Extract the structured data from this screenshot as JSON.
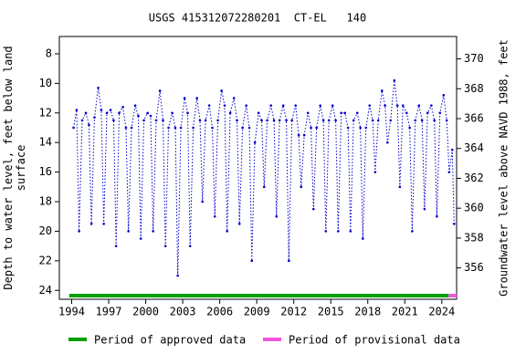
{
  "chart_data": {
    "type": "line",
    "title": "USGS 415312072280201  CT-EL   140",
    "ylabel": "Depth to water level, feet below land\nsurface",
    "y2label": "Groundwater level above NAVD 1988, feet",
    "xlim": [
      1993.0,
      2025.2
    ],
    "xticks": [
      1994,
      1997,
      2000,
      2003,
      2006,
      2009,
      2012,
      2015,
      2018,
      2021,
      2024
    ],
    "ylim": [
      6.83,
      24.6
    ],
    "yticks": [
      8,
      10,
      12,
      14,
      16,
      18,
      20,
      22,
      24
    ],
    "y_inverted": true,
    "y2lim": [
      371.5,
      353.9
    ],
    "y2ticks": [
      356,
      358,
      360,
      362,
      364,
      366,
      368,
      370
    ],
    "series": [
      {
        "name": "Depth to water level",
        "color": "#0000cc",
        "x": [
          1994.15,
          1994.4,
          1994.6,
          1994.85,
          1995.15,
          1995.4,
          1995.6,
          1995.85,
          1996.15,
          1996.4,
          1996.6,
          1996.85,
          1997.15,
          1997.4,
          1997.6,
          1997.85,
          1998.15,
          1998.4,
          1998.6,
          1998.85,
          1999.15,
          1999.4,
          1999.6,
          1999.85,
          2000.15,
          2000.4,
          2000.6,
          2000.85,
          2001.15,
          2001.4,
          2001.6,
          2001.85,
          2002.15,
          2002.4,
          2002.6,
          2002.85,
          2003.15,
          2003.4,
          2003.6,
          2003.85,
          2004.15,
          2004.4,
          2004.6,
          2004.85,
          2005.15,
          2005.4,
          2005.6,
          2005.85,
          2006.15,
          2006.4,
          2006.6,
          2006.85,
          2007.15,
          2007.4,
          2007.6,
          2007.85,
          2008.15,
          2008.4,
          2008.6,
          2008.85,
          2009.15,
          2009.4,
          2009.6,
          2009.85,
          2010.15,
          2010.4,
          2010.6,
          2010.85,
          2011.15,
          2011.4,
          2011.6,
          2011.85,
          2012.15,
          2012.4,
          2012.6,
          2012.85,
          2013.15,
          2013.4,
          2013.6,
          2013.85,
          2014.15,
          2014.4,
          2014.6,
          2014.85,
          2015.15,
          2015.4,
          2015.6,
          2015.85,
          2016.15,
          2016.4,
          2016.6,
          2016.85,
          2017.15,
          2017.4,
          2017.6,
          2017.85,
          2018.15,
          2018.4,
          2018.6,
          2018.85,
          2019.15,
          2019.4,
          2019.6,
          2019.85,
          2020.15,
          2020.4,
          2020.6,
          2020.85,
          2021.15,
          2021.4,
          2021.6,
          2021.85,
          2022.15,
          2022.4,
          2022.6,
          2022.85,
          2023.15,
          2023.4,
          2023.6,
          2023.85,
          2024.15,
          2024.4,
          2024.6,
          2024.85,
          2025.0
        ],
        "values": [
          13,
          11.8,
          20,
          12.5,
          12,
          12.8,
          19.5,
          12.3,
          10.3,
          11.8,
          19.5,
          12,
          11.8,
          12.5,
          21,
          12,
          11.6,
          13,
          20,
          13,
          11.5,
          12.2,
          20.5,
          12.5,
          12,
          12.2,
          20,
          12.5,
          10.5,
          12.5,
          21,
          13,
          12,
          13,
          23,
          13,
          11,
          12,
          21,
          13,
          11,
          12.5,
          18,
          12.5,
          11.5,
          13,
          19,
          12.5,
          10.5,
          11.5,
          20,
          12,
          11,
          12.5,
          19.5,
          13,
          11.5,
          13,
          22,
          14,
          12,
          12.5,
          17,
          12.5,
          11.5,
          12.5,
          19,
          12.5,
          11.5,
          12.5,
          22,
          12.5,
          11.5,
          13.5,
          17,
          13.5,
          12,
          13,
          18.5,
          13,
          11.5,
          12.5,
          20,
          12.5,
          11.5,
          12.5,
          20,
          12,
          12,
          13,
          20,
          12.5,
          12,
          13,
          20.5,
          13,
          11.5,
          12.5,
          16,
          12.5,
          10.5,
          11.5,
          14,
          12.5,
          9.8,
          11.5,
          17,
          11.5,
          12,
          13,
          20,
          12.5,
          11.5,
          12.5,
          18.5,
          12,
          11.5,
          12.5,
          19,
          12,
          10.8,
          12.5,
          16,
          14.5,
          19.5
        ]
      }
    ],
    "periods": [
      {
        "name": "Period of approved data",
        "color": "#00a000",
        "range": [
          1993.8,
          2024.55
        ]
      },
      {
        "name": "Period of provisional data",
        "color": "#ee55dd",
        "range": [
          2024.55,
          2025.2
        ]
      }
    ]
  }
}
